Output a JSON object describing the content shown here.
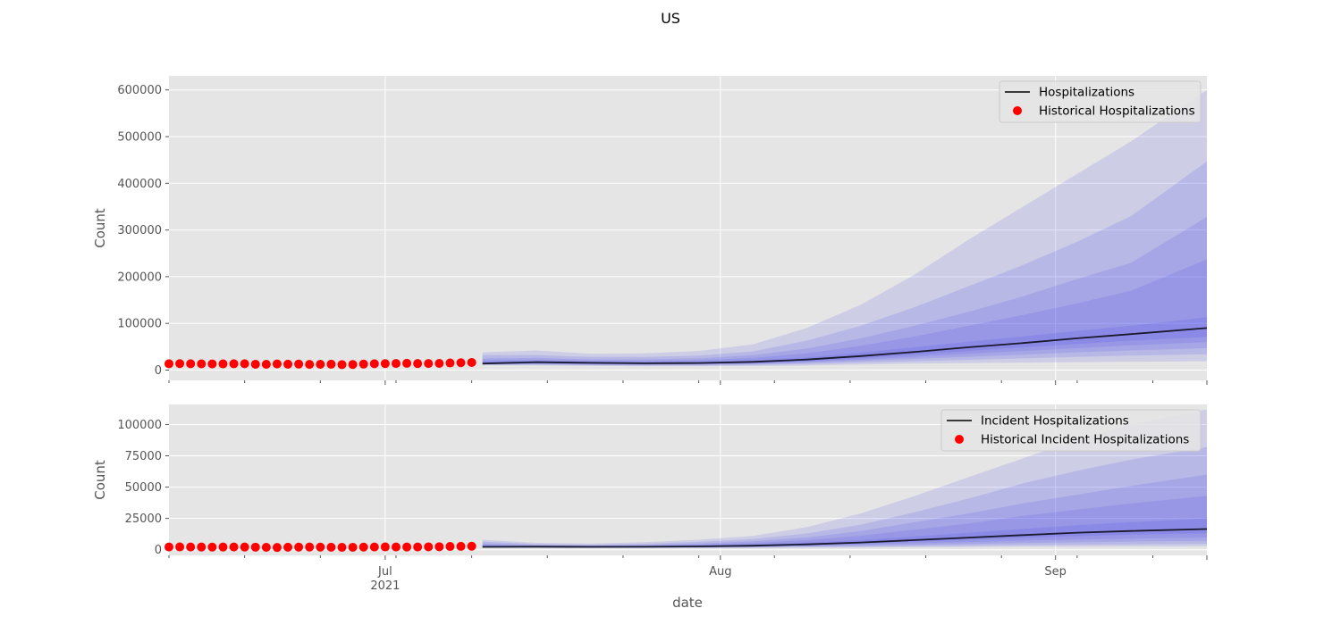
{
  "figure": {
    "suptitle": "US",
    "xlabel": "date",
    "x_ticks": [
      {
        "date": "2021-07-01",
        "label": "Jul",
        "sublabel": "2021"
      },
      {
        "date": "2021-08-01",
        "label": "Aug",
        "sublabel": ""
      },
      {
        "date": "2021-09-01",
        "label": "Sep",
        "sublabel": ""
      }
    ],
    "xlim": [
      "2021-06-11",
      "2021-09-15"
    ],
    "colors": {
      "background": "#e5e5e5",
      "grid": "#ffffff",
      "band": "#4444ee",
      "median": "#1a1a2e",
      "historical": "#ff0000"
    }
  },
  "chart_data": [
    {
      "type": "line",
      "ylabel": "Count",
      "ylim": [
        -22000,
        630000
      ],
      "yticks": [
        0,
        100000,
        200000,
        300000,
        400000,
        500000,
        600000
      ],
      "legend": {
        "placement": "top-right",
        "entries": [
          "Hospitalizations",
          "Historical Hospitalizations"
        ]
      },
      "historical": {
        "name": "Historical Hospitalizations",
        "start": "2021-06-11",
        "values": [
          13500,
          13800,
          13600,
          13400,
          13200,
          13300,
          13500,
          13600,
          12500,
          12400,
          13200,
          12600,
          12800,
          12200,
          12400,
          12600,
          11800,
          12000,
          12800,
          13600,
          13900,
          14200,
          14500,
          14000,
          14100,
          14300,
          15200,
          15800,
          16300
        ]
      },
      "forecast": {
        "name": "Hospitalizations",
        "x": [
          "2021-07-10",
          "2021-07-15",
          "2021-07-20",
          "2021-07-25",
          "2021-07-30",
          "2021-08-04",
          "2021-08-09",
          "2021-08-14",
          "2021-08-19",
          "2021-08-24",
          "2021-08-29",
          "2021-09-03",
          "2021-09-08",
          "2021-09-15"
        ],
        "median": [
          14000,
          17000,
          15500,
          14500,
          15000,
          17500,
          22500,
          30000,
          39000,
          49000,
          58000,
          68000,
          77000,
          90000
        ],
        "bands": [
          {
            "lower": [
              11000,
              10000,
              9000,
              8000,
              8000,
              8500,
              10000,
              12000,
              14000,
              15000,
              16000,
              17000,
              18000,
              19000
            ],
            "upper": [
              38000,
              42000,
              35000,
              36000,
              41000,
              55000,
              90000,
              140000,
              205000,
              280000,
              350000,
              420000,
              490000,
              600000
            ]
          },
          {
            "lower": [
              11500,
              11500,
              10500,
              10000,
              10000,
              11000,
              13000,
              16000,
              19000,
              22000,
              25000,
              28000,
              31000,
              34000
            ],
            "upper": [
              32000,
              32000,
              28000,
              28000,
              31000,
              40000,
              63000,
              95000,
              135000,
              180000,
              225000,
              275000,
              330000,
              447000
            ]
          },
          {
            "lower": [
              12000,
              12500,
              11500,
              11000,
              11500,
              12500,
              15500,
              19500,
              24000,
              28500,
              33000,
              38000,
              42000,
              47000
            ],
            "upper": [
              25000,
              26000,
              23000,
              23000,
              25000,
              32000,
              46000,
              68000,
              95000,
              125000,
              158000,
              195000,
              230000,
              328000
            ]
          },
          {
            "lower": [
              12500,
              13500,
              12500,
              12000,
              12500,
              14000,
              17500,
              22500,
              28500,
              35000,
              41000,
              47000,
              53000,
              60000
            ],
            "upper": [
              21000,
              22000,
              20000,
              19500,
              21000,
              26000,
              36000,
              52000,
              72000,
              95000,
              118000,
              143000,
              170000,
              237000
            ]
          },
          {
            "lower": [
              13000,
              14500,
              13500,
              12800,
              13300,
              15300,
              19300,
              25500,
              33000,
              41000,
              48500,
              56000,
              63000,
              71000
            ],
            "upper": [
              17500,
              19500,
              17500,
              16500,
              17300,
              20600,
              27300,
              37500,
              49000,
              61000,
              72000,
              84000,
              95000,
              113000
            ]
          }
        ]
      }
    },
    {
      "type": "line",
      "ylabel": "Count",
      "ylim": [
        -4500,
        116000
      ],
      "yticks": [
        0,
        25000,
        50000,
        75000,
        100000
      ],
      "legend": {
        "placement": "top-right",
        "entries": [
          "Incident Hospitalizations",
          "Historical Incident Hospitalizations"
        ]
      },
      "historical": {
        "name": "Historical Incident Hospitalizations",
        "start": "2021-06-11",
        "values": [
          2200,
          2250,
          2200,
          2150,
          2100,
          2150,
          2200,
          2150,
          2050,
          1900,
          1800,
          2000,
          2100,
          2150,
          2100,
          2000,
          1900,
          1950,
          2100,
          2200,
          2250,
          2200,
          2150,
          2200,
          2300,
          2400,
          2600,
          2700,
          2800
        ]
      },
      "forecast": {
        "name": "Incident Hospitalizations",
        "x": [
          "2021-07-10",
          "2021-07-15",
          "2021-07-20",
          "2021-07-25",
          "2021-07-30",
          "2021-08-04",
          "2021-08-09",
          "2021-08-14",
          "2021-08-19",
          "2021-08-24",
          "2021-08-29",
          "2021-09-03",
          "2021-09-08",
          "2021-09-15"
        ],
        "median": [
          2300,
          2400,
          2300,
          2350,
          2600,
          3200,
          4300,
          5800,
          7700,
          9700,
          11700,
          13600,
          15000,
          16500
        ],
        "bands": [
          {
            "lower": [
              1600,
              1500,
              1400,
              1300,
              1300,
              1400,
              1600,
              1800,
              2000,
              2200,
              2400,
              2500,
              2600,
              2700
            ],
            "upper": [
              8000,
              5500,
              5000,
              6000,
              8000,
              11000,
              18000,
              29000,
              43000,
              58000,
              73000,
              88000,
              100000,
              112000
            ]
          },
          {
            "lower": [
              1800,
              1700,
              1600,
              1550,
              1600,
              1750,
              2100,
              2500,
              2900,
              3300,
              3700,
              4000,
              4300,
              4600
            ],
            "upper": [
              6500,
              4500,
              4000,
              4800,
              6300,
              8500,
              13000,
              20000,
              30000,
              41000,
              53000,
              63000,
              72000,
              82000
            ]
          },
          {
            "lower": [
              1950,
              1900,
              1800,
              1800,
              1850,
              2100,
              2600,
              3200,
              3900,
              4600,
              5300,
              5900,
              6500,
              7000
            ],
            "upper": [
              5000,
              3800,
              3500,
              3900,
              5000,
              6700,
              9800,
              15000,
              22000,
              29000,
              37000,
              44000,
              51000,
              60000
            ]
          },
          {
            "lower": [
              2050,
              2100,
              2000,
              2000,
              2100,
              2500,
              3200,
              4100,
              5100,
              6100,
              7200,
              8100,
              8900,
              9700
            ],
            "upper": [
              4100,
              3300,
              3100,
              3300,
              4100,
              5300,
              7600,
              11200,
              16000,
              21000,
              27000,
              32000,
              37000,
              43000
            ]
          },
          {
            "lower": [
              2150,
              2250,
              2150,
              2200,
              2400,
              2900,
              3800,
              5000,
              6500,
              8000,
              9500,
              10800,
              12000,
              13200
            ],
            "upper": [
              3200,
              2900,
              2700,
              2800,
              3300,
              4100,
              5600,
              7800,
              10600,
              13600,
              16700,
              19500,
              22000,
              25000
            ]
          }
        ]
      }
    }
  ]
}
